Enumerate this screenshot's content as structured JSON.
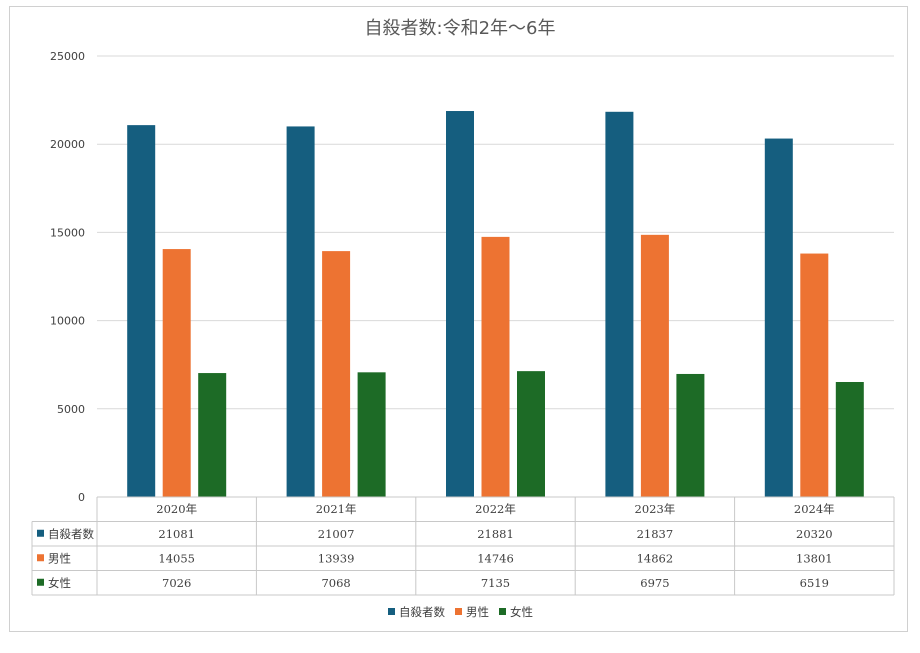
{
  "chart_data": {
    "type": "bar",
    "title": "自殺者数:令和2年～6年",
    "categories": [
      "2020年",
      "2021年",
      "2022年",
      "2023年",
      "2024年"
    ],
    "series": [
      {
        "name": "自殺者数",
        "color": "#155e7f",
        "values": [
          21081,
          21007,
          21881,
          21837,
          20320
        ]
      },
      {
        "name": "男性",
        "color": "#ed7332",
        "values": [
          14055,
          13939,
          14746,
          14862,
          13801
        ]
      },
      {
        "name": "女性",
        "color": "#1d6b26",
        "values": [
          7026,
          7068,
          7135,
          6975,
          6519
        ]
      }
    ],
    "ylim": [
      0,
      25000
    ],
    "yticks": [
      0,
      5000,
      10000,
      15000,
      20000,
      25000
    ],
    "grid": true,
    "data_table": true,
    "legend_position": "bottom"
  }
}
